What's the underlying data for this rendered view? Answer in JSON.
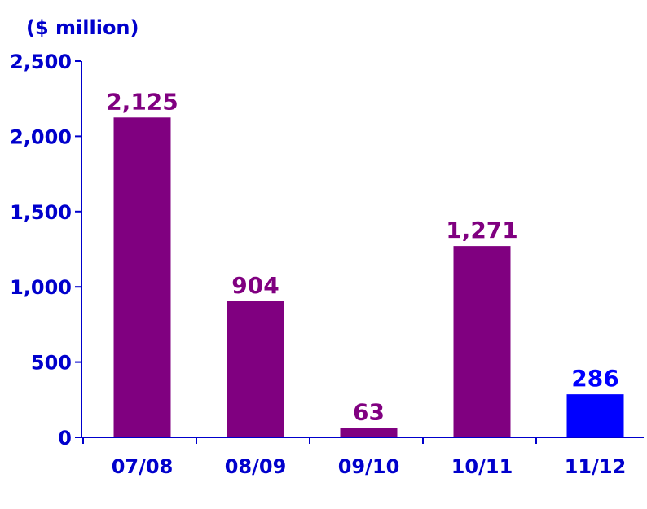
{
  "chart_data": {
    "type": "bar",
    "unit_label": "($ million)",
    "title": "",
    "xlabel": "",
    "ylabel": "",
    "categories": [
      "07/08",
      "08/09",
      "09/10",
      "10/11",
      "11/12"
    ],
    "values": [
      2125,
      904,
      63,
      1271,
      286
    ],
    "value_labels": [
      "2,125",
      "904",
      "63",
      "1,271",
      "286"
    ],
    "ylim": [
      0,
      2500
    ],
    "y_ticks": [
      0,
      500,
      1000,
      1500,
      2000,
      2500
    ],
    "y_tick_labels": [
      "0",
      "500",
      "1,000",
      "1,500",
      "2,000",
      "2,500"
    ],
    "grid": false,
    "legend": "none",
    "colors": {
      "axis": "#0000cc",
      "axis_text": "#0000cc",
      "bar_default": "#800080",
      "bar_highlight": "#0000ff",
      "label_default": "#800080",
      "label_highlight": "#0000ff"
    },
    "highlight_index": 4
  }
}
